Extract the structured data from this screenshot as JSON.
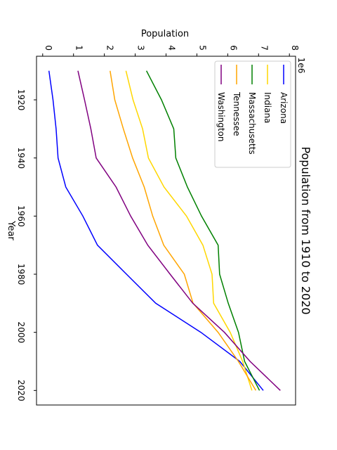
{
  "chart_data": {
    "type": "line",
    "title": "Population from 1910 to 2020",
    "xlabel": "Year",
    "ylabel": "Population",
    "y_offset_text": "1e6",
    "x": [
      1910,
      1920,
      1930,
      1940,
      1950,
      1960,
      1970,
      1980,
      1990,
      2000,
      2010,
      2020
    ],
    "xlim": [
      1905,
      2025
    ],
    "ylim": [
      -200000,
      8200000
    ],
    "x_ticks": [
      1920,
      1940,
      1960,
      1980,
      2000,
      2020
    ],
    "x_tick_labels": [
      "1920",
      "1940",
      "1960",
      "1980",
      "2000",
      "2020"
    ],
    "y_ticks": [
      0,
      1000000,
      2000000,
      3000000,
      4000000,
      5000000,
      6000000,
      7000000,
      8000000
    ],
    "y_tick_labels": [
      "0",
      "1",
      "2",
      "3",
      "4",
      "5",
      "6",
      "7",
      "8"
    ],
    "grid": false,
    "legend_position": "top-right",
    "orientation": "rotated 90 degrees clockwise",
    "series": [
      {
        "name": "Arizona",
        "color": "#0000ff",
        "values": [
          204000,
          334000,
          436000,
          499000,
          750000,
          1302000,
          1775000,
          2718000,
          3665000,
          5131000,
          6392000,
          7152000
        ]
      },
      {
        "name": "Indiana",
        "color": "#ffd700",
        "values": [
          2701000,
          2930000,
          3239000,
          3428000,
          3934000,
          4662000,
          5194000,
          5490000,
          5544000,
          6080000,
          6484000,
          6785000
        ]
      },
      {
        "name": "Massachusetts",
        "color": "#008000",
        "values": [
          3366000,
          3852000,
          4250000,
          4317000,
          4691000,
          5149000,
          5689000,
          5737000,
          6016000,
          6349000,
          6548000,
          7030000
        ]
      },
      {
        "name": "Tennessee",
        "color": "#ffa500",
        "values": [
          2185000,
          2338000,
          2617000,
          2916000,
          3292000,
          3567000,
          3924000,
          4591000,
          4877000,
          5689000,
          6346000,
          6911000
        ]
      },
      {
        "name": "Washington",
        "color": "#800080",
        "values": [
          1142000,
          1357000,
          1563000,
          1736000,
          2379000,
          2853000,
          3409000,
          4132000,
          4867000,
          5894000,
          6725000,
          7705000
        ]
      }
    ]
  }
}
